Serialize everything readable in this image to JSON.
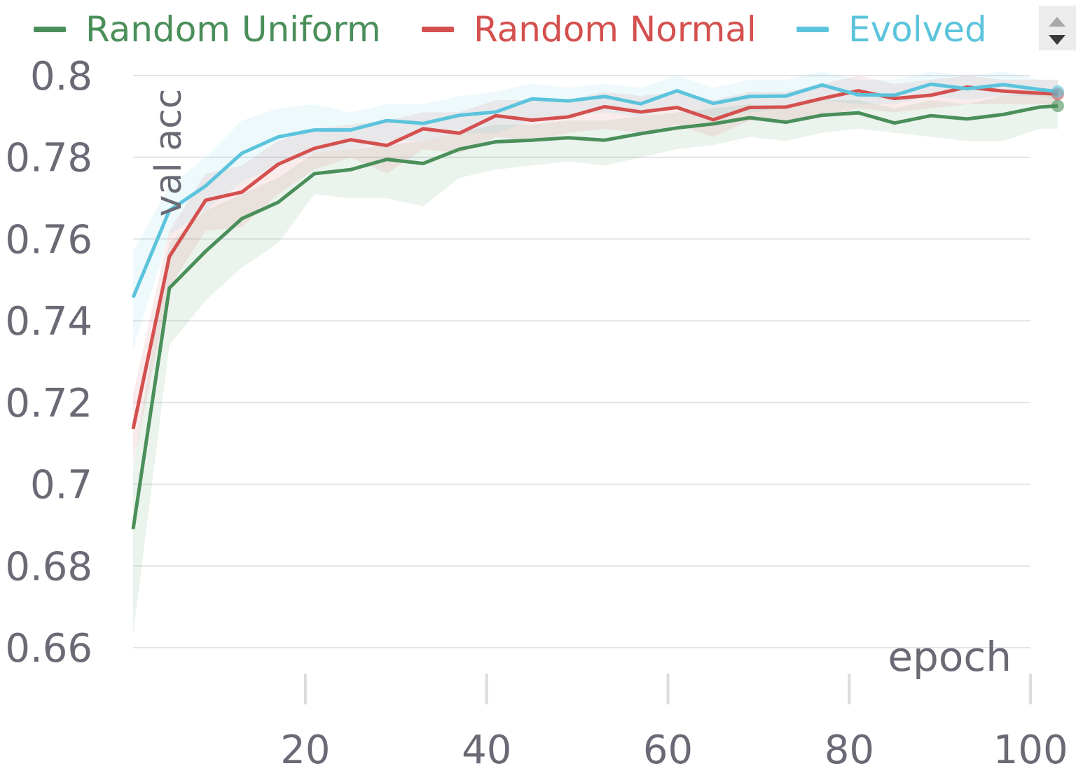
{
  "legend": {
    "items": [
      {
        "label": "Random Uniform",
        "color": "#4a8f5a"
      },
      {
        "label": "Random Normal",
        "color": "#d4504f"
      },
      {
        "label": "Evolved",
        "color": "#5bc4dc"
      }
    ],
    "scroll_icons": [
      "arrow-up-icon",
      "arrow-down-icon"
    ]
  },
  "chart_data": {
    "type": "line",
    "xlabel": "epoch",
    "ylabel": "val acc",
    "xlim": [
      1,
      103
    ],
    "ylim": [
      0.66,
      0.8
    ],
    "xticks": [
      20,
      40,
      60,
      80,
      100
    ],
    "yticks": [
      0.8,
      0.78,
      0.76,
      0.74,
      0.72,
      0.7,
      0.68,
      0.66
    ],
    "ytick_labels": [
      "0.8",
      "0.78",
      "0.76",
      "0.74",
      "0.72",
      "0.7",
      "0.68",
      "0.66"
    ],
    "grid": true,
    "legend_position": "top",
    "x": [
      1,
      5,
      9,
      13,
      17,
      21,
      25,
      29,
      33,
      37,
      41,
      45,
      49,
      53,
      57,
      61,
      65,
      69,
      73,
      77,
      81,
      85,
      89,
      93,
      97,
      101,
      103
    ],
    "series": [
      {
        "name": "Random Uniform",
        "color": "#4a8f5a",
        "values": [
          0.689,
          0.748,
          0.757,
          0.765,
          0.769,
          0.776,
          0.777,
          0.7795,
          0.7785,
          0.782,
          0.7838,
          0.7842,
          0.7848,
          0.7842,
          0.7858,
          0.7872,
          0.7882,
          0.7897,
          0.7886,
          0.7903,
          0.7909,
          0.7884,
          0.7902,
          0.7894,
          0.7905,
          0.7923,
          0.7926
        ],
        "band_lower": [
          0.663,
          0.734,
          0.745,
          0.753,
          0.759,
          0.771,
          0.77,
          0.77,
          0.768,
          0.775,
          0.777,
          0.778,
          0.779,
          0.778,
          0.78,
          0.782,
          0.783,
          0.785,
          0.784,
          0.786,
          0.787,
          0.786,
          0.785,
          0.784,
          0.784,
          0.787,
          0.787
        ],
        "band_upper": [
          0.704,
          0.759,
          0.767,
          0.771,
          0.775,
          0.781,
          0.782,
          0.783,
          0.784,
          0.786,
          0.788,
          0.788,
          0.789,
          0.789,
          0.79,
          0.791,
          0.792,
          0.793,
          0.792,
          0.794,
          0.794,
          0.792,
          0.794,
          0.793,
          0.795,
          0.796,
          0.796
        ]
      },
      {
        "name": "Random Normal",
        "color": "#d4504f",
        "values": [
          0.7135,
          0.7557,
          0.7695,
          0.7715,
          0.7783,
          0.7822,
          0.7843,
          0.7829,
          0.787,
          0.7859,
          0.7902,
          0.7891,
          0.7899,
          0.7924,
          0.7911,
          0.7922,
          0.7892,
          0.7922,
          0.7923,
          0.7944,
          0.7963,
          0.7944,
          0.7952,
          0.7972,
          0.7962,
          0.7957,
          0.7955
        ],
        "band_lower": [
          0.705,
          0.748,
          0.762,
          0.763,
          0.771,
          0.777,
          0.78,
          0.776,
          0.782,
          0.781,
          0.785,
          0.784,
          0.786,
          0.787,
          0.786,
          0.788,
          0.785,
          0.789,
          0.789,
          0.79,
          0.792,
          0.791,
          0.792,
          0.793,
          0.793,
          0.793,
          0.793
        ],
        "band_upper": [
          0.722,
          0.762,
          0.776,
          0.778,
          0.784,
          0.787,
          0.788,
          0.789,
          0.791,
          0.791,
          0.794,
          0.794,
          0.794,
          0.796,
          0.795,
          0.796,
          0.794,
          0.796,
          0.796,
          0.798,
          0.8,
          0.798,
          0.799,
          0.8,
          0.799,
          0.799,
          0.799
        ]
      },
      {
        "name": "Evolved",
        "color": "#5bc4dc",
        "values": [
          0.7457,
          0.767,
          0.773,
          0.781,
          0.785,
          0.7867,
          0.7867,
          0.789,
          0.7883,
          0.7903,
          0.7911,
          0.7943,
          0.7938,
          0.7949,
          0.7931,
          0.7963,
          0.7932,
          0.7949,
          0.795,
          0.7977,
          0.7953,
          0.7952,
          0.7979,
          0.7968,
          0.7978,
          0.7966,
          0.7961
        ],
        "band_lower": [
          0.733,
          0.761,
          0.767,
          0.774,
          0.778,
          0.781,
          0.782,
          0.784,
          0.784,
          0.786,
          0.786,
          0.789,
          0.79,
          0.791,
          0.79,
          0.792,
          0.79,
          0.791,
          0.792,
          0.794,
          0.793,
          0.793,
          0.795,
          0.794,
          0.795,
          0.795,
          0.794
        ],
        "band_upper": [
          0.757,
          0.773,
          0.78,
          0.789,
          0.792,
          0.793,
          0.791,
          0.793,
          0.793,
          0.795,
          0.796,
          0.798,
          0.797,
          0.798,
          0.797,
          0.8,
          0.797,
          0.799,
          0.799,
          0.801,
          0.799,
          0.799,
          0.801,
          0.8,
          0.801,
          0.799,
          0.799
        ]
      }
    ]
  }
}
